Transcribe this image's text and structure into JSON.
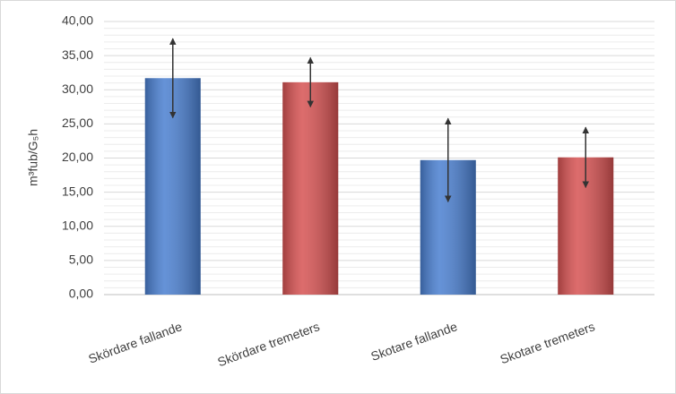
{
  "chart_data": {
    "type": "bar",
    "ylabel": "m³fub/G₅h",
    "categories": [
      "Skördare fallande",
      "Skördare tremeters",
      "Skotare fallande",
      "Skotare tremeters"
    ],
    "values": [
      31.7,
      31.1,
      19.7,
      20.1
    ],
    "errors": [
      5.8,
      3.6,
      6.1,
      4.4
    ],
    "colors": [
      "#4a7fd0",
      "#d65252",
      "#4a7fd0",
      "#d65252"
    ],
    "ylim": [
      0,
      40
    ],
    "yticks": [
      {
        "value": 0,
        "label": "0,00"
      },
      {
        "value": 5,
        "label": "5,00"
      },
      {
        "value": 10,
        "label": "10,00"
      },
      {
        "value": 15,
        "label": "15,00"
      },
      {
        "value": 20,
        "label": "20,00"
      },
      {
        "value": 25,
        "label": "25,00"
      },
      {
        "value": 30,
        "label": "30,00"
      },
      {
        "value": 35,
        "label": "35,00"
      },
      {
        "value": 40,
        "label": "40,00"
      }
    ],
    "grid": true
  }
}
